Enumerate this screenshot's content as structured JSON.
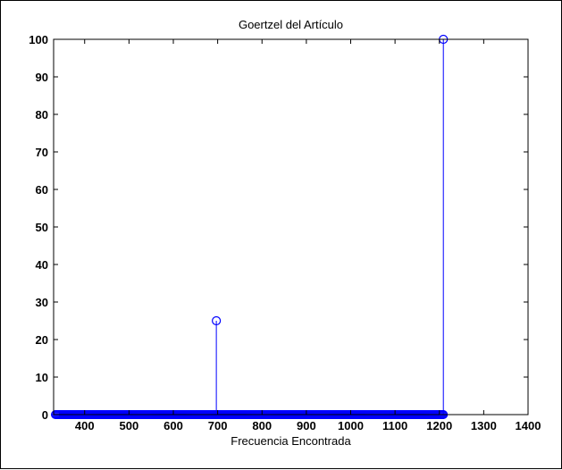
{
  "chart_data": {
    "type": "stem",
    "title": "Goertzel del Artículo",
    "xlabel": "Frecuencia Encontrada",
    "ylabel": "",
    "xlim": [
      330,
      1400
    ],
    "ylim": [
      0,
      100
    ],
    "xticks": [
      400,
      500,
      600,
      700,
      800,
      900,
      1000,
      1100,
      1200,
      1300,
      1400
    ],
    "yticks": [
      0,
      10,
      20,
      30,
      40,
      50,
      60,
      70,
      80,
      90,
      100
    ],
    "grid": false,
    "color": "#0000ff",
    "baseline_range": [
      334,
      1209
    ],
    "baseline_step": 2,
    "baseline_value": 0,
    "peaks": [
      {
        "x": 697,
        "y": 25
      },
      {
        "x": 1209,
        "y": 100
      }
    ]
  }
}
